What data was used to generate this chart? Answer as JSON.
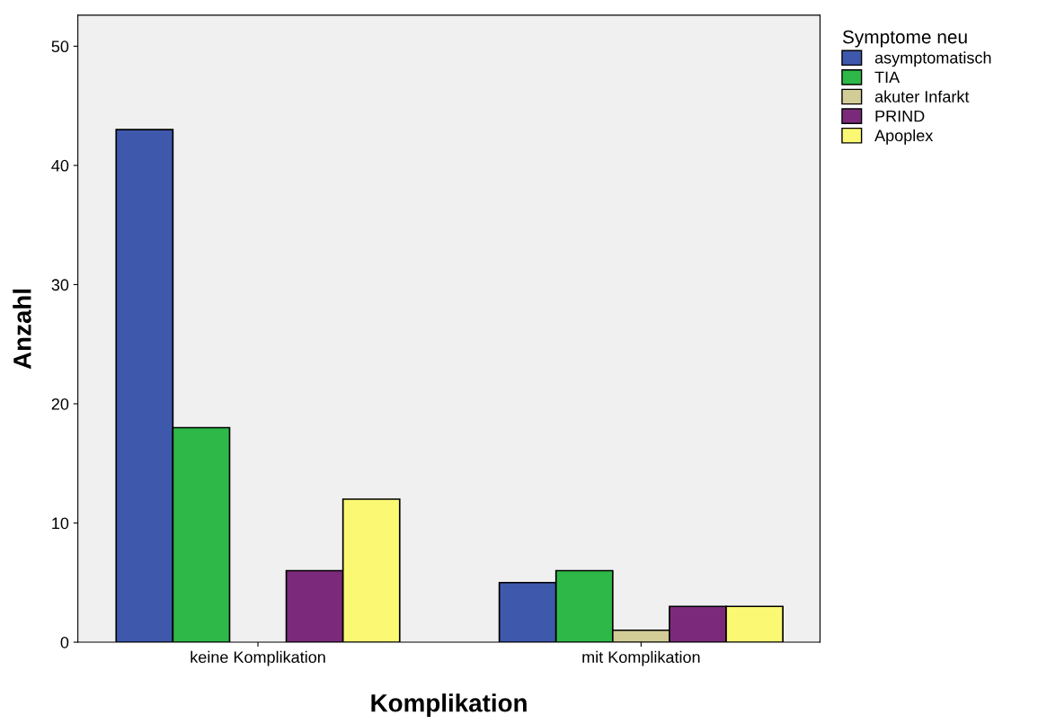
{
  "chart_data": {
    "type": "bar",
    "xlabel": "Komplikation",
    "ylabel": "Anzahl",
    "legend_title": "Symptome neu",
    "categories": [
      "keine Komplikation",
      "mit Komplikation"
    ],
    "series": [
      {
        "name": "asymptomatisch",
        "color": "#3e58ac",
        "values": [
          43,
          5
        ]
      },
      {
        "name": "TIA",
        "color": "#2eb848",
        "values": [
          18,
          6
        ]
      },
      {
        "name": "akuter Infarkt",
        "color": "#d2cd96",
        "values": [
          null,
          1
        ]
      },
      {
        "name": "PRIND",
        "color": "#7b2a7b",
        "values": [
          6,
          3
        ]
      },
      {
        "name": "Apoplex",
        "color": "#fbf873",
        "values": [
          12,
          3
        ]
      }
    ],
    "ylim": [
      0,
      52.6
    ],
    "yticks": [
      0,
      10,
      20,
      30,
      40,
      50
    ],
    "grid": false,
    "legend": "top right"
  }
}
